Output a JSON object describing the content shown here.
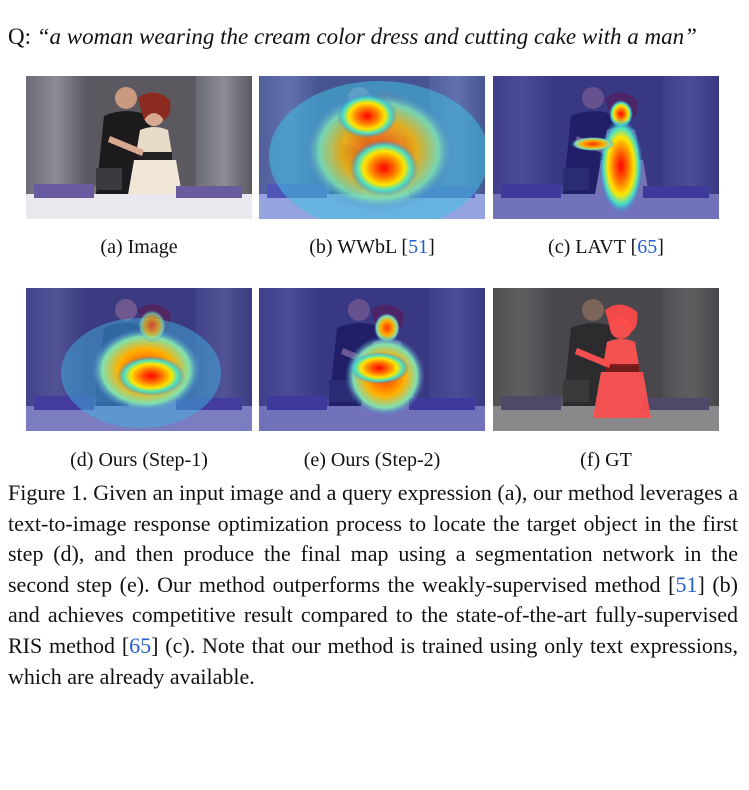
{
  "figure": {
    "query_prefix": "Q: ",
    "query_text": "“a woman wearing the cream color dress and cutting cake with a man”",
    "panels": [
      {
        "label_prefix": "(a) Image",
        "ref": "",
        "label_suffix": "",
        "overlay": "none"
      },
      {
        "label_prefix": "(b) WWbL [",
        "ref": "51",
        "label_suffix": "]",
        "overlay": "broad-heatmap"
      },
      {
        "label_prefix": "(c) LAVT [",
        "ref": "65",
        "label_suffix": "]",
        "overlay": "woman-heatmap"
      },
      {
        "label_prefix": "(d) Ours (Step-1)",
        "ref": "",
        "label_suffix": "",
        "overlay": "coarse-heatmap"
      },
      {
        "label_prefix": "(e) Ours (Step-2)",
        "ref": "",
        "label_suffix": "",
        "overlay": "refined-heatmap"
      },
      {
        "label_prefix": "(f) GT",
        "ref": "",
        "label_suffix": "",
        "overlay": "gt-mask"
      }
    ],
    "caption": {
      "p1": "Figure 1. Given an input image and a query expression (a), our method leverages a text-to-image response optimization process to locate the target object in the first step (d), and then produce the final map using a segmentation network in the second step (e). Our method outperforms the weakly-supervised method [",
      "r1": "51",
      "p2": "] (b) and achieves competitive result compared to the state-of-the-art fully-supervised RIS method [",
      "r2": "65",
      "p3": "] (c). Note that our method is trained using only text expressions, which are already available."
    },
    "colors": {
      "reference_link": "#2060c8",
      "heat_hot": "#e0221a",
      "heat_cold": "#2a2a8a",
      "gt_mask": "#ff4c4c"
    }
  }
}
